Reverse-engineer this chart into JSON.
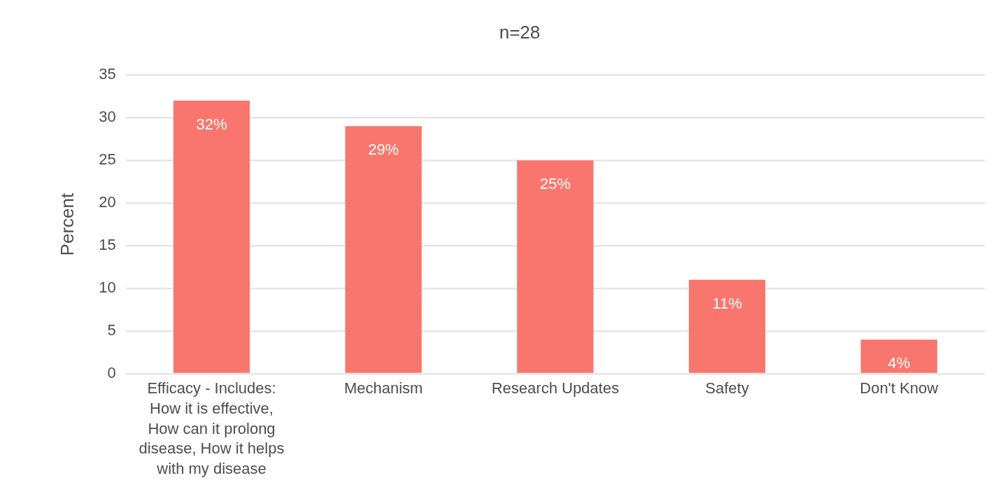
{
  "chart_data": {
    "type": "bar",
    "title": "n=28",
    "ylabel": "Percent",
    "categories": [
      "Efficacy - Includes: How it is effective, How can it prolong disease, How it helps with my disease",
      "Mechanism",
      "Research Updates",
      "Safety",
      "Don't Know"
    ],
    "values": [
      32,
      29,
      25,
      11,
      4
    ],
    "value_labels": [
      "32%",
      "29%",
      "25%",
      "11%",
      "4%"
    ],
    "color": "#f8766d",
    "ylim": [
      0,
      35
    ],
    "yticks": [
      0,
      5,
      10,
      15,
      20,
      25,
      30,
      35
    ],
    "grid": "y",
    "legend": false
  }
}
